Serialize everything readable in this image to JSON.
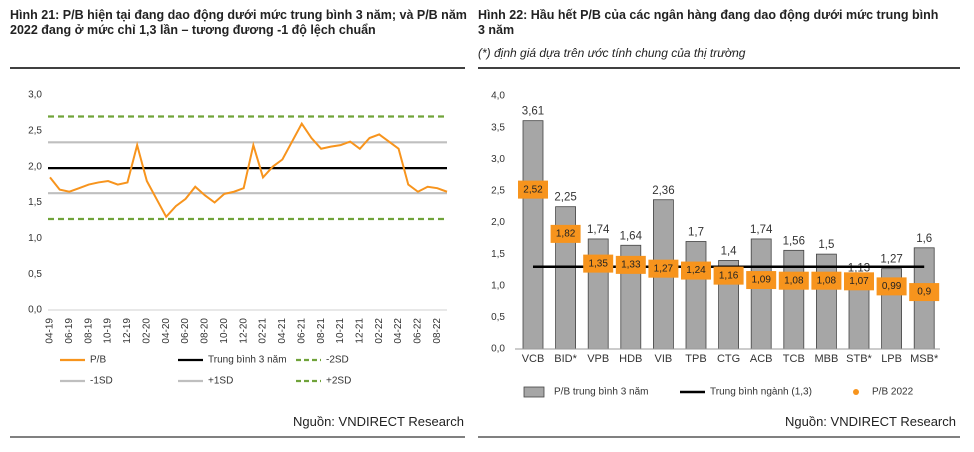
{
  "chart_data": [
    {
      "type": "line",
      "title": "Hình 21: P/B hiện tại đang dao động dưới mức trung bình 3 năm; và P/B năm 2022 đang ở mức chỉ 1,3 lần – tương đương -1 độ lệch chuẩn",
      "source": "Nguồn: VNDIRECT Research",
      "categories": [
        "04-19",
        null,
        "06-19",
        null,
        "08-19",
        null,
        "10-19",
        null,
        "12-19",
        null,
        "02-20",
        null,
        "04-20",
        null,
        "06-20",
        null,
        "08-20",
        null,
        "10-20",
        null,
        "12-20",
        null,
        "02-21",
        null,
        "04-21",
        null,
        "06-21",
        null,
        "08-21",
        null,
        "10-21",
        null,
        "12-21",
        null,
        "02-22",
        null,
        "04-22",
        null,
        "06-22",
        null,
        "08-22",
        null
      ],
      "series": [
        {
          "name": "P/B",
          "color": "#f7941d",
          "values": [
            1.85,
            1.68,
            1.65,
            1.7,
            1.75,
            1.78,
            1.8,
            1.75,
            1.78,
            2.3,
            1.8,
            1.55,
            1.3,
            1.45,
            1.55,
            1.72,
            1.6,
            1.5,
            1.62,
            1.65,
            1.7,
            2.3,
            1.85,
            2.0,
            2.1,
            2.35,
            2.6,
            2.4,
            2.25,
            2.28,
            2.3,
            2.35,
            2.25,
            2.4,
            2.45,
            2.35,
            2.25,
            1.75,
            1.65,
            1.72,
            1.7,
            1.65
          ]
        }
      ],
      "reference_lines": [
        {
          "name": "Trung bình 3 năm",
          "value": 1.98,
          "color": "#000000",
          "dashed": false
        },
        {
          "name": "-2SD",
          "value": 1.27,
          "color": "#70a33a",
          "dashed": true
        },
        {
          "name": "-1SD",
          "value": 1.63,
          "color": "#bfbfbf",
          "dashed": false
        },
        {
          "name": "+1SD",
          "value": 2.34,
          "color": "#bfbfbf",
          "dashed": false
        },
        {
          "name": "+2SD",
          "value": 2.7,
          "color": "#70a33a",
          "dashed": true
        }
      ],
      "ylim": [
        0,
        3
      ],
      "yticks": [
        {
          "value": 0,
          "label": "0,0"
        },
        {
          "value": 0.5,
          "label": "0,5"
        },
        {
          "value": 1,
          "label": "1,0"
        },
        {
          "value": 1.5,
          "label": "1,5"
        },
        {
          "value": 2,
          "label": "2,0"
        },
        {
          "value": 2.5,
          "label": "2,5"
        },
        {
          "value": 3,
          "label": "3,0"
        }
      ]
    },
    {
      "type": "bar",
      "title": "Hình 22: Hầu hết P/B của các ngân hàng đang dao động dưới mức trung bình 3 năm",
      "subtitle": "(*) định giá dựa trên ước tính chung của thị trường",
      "source": "Nguồn: VNDIRECT Research",
      "categories": [
        "VCB",
        "BID*",
        "VPB",
        "HDB",
        "VIB",
        "TPB",
        "CTG",
        "ACB",
        "TCB",
        "MBB",
        "STB*",
        "LPB",
        "MSB*"
      ],
      "series": [
        {
          "name": "P/B trung bình 3 năm",
          "type": "bar",
          "color": "#a6a6a6",
          "values": [
            3.61,
            2.25,
            1.74,
            1.64,
            2.36,
            1.7,
            1.4,
            1.74,
            1.56,
            1.5,
            1.13,
            1.27,
            1.6
          ],
          "value_labels": [
            "3,61",
            "2,25",
            "1,74",
            "1,64",
            "2,36",
            "1,7",
            "1,4",
            "1,74",
            "1,56",
            "1,5",
            "1,13",
            "1,27",
            "1,6"
          ]
        },
        {
          "name": "Trung bình ngành (1,3)",
          "type": "line",
          "color": "#000000",
          "values": [
            1.3,
            1.3,
            1.3,
            1.3,
            1.3,
            1.3,
            1.3,
            1.3,
            1.3,
            1.3,
            1.3,
            1.3,
            1.3
          ]
        },
        {
          "name": "P/B 2022",
          "type": "scatter",
          "color": "#f7941d",
          "values": [
            2.52,
            1.82,
            1.35,
            1.33,
            1.27,
            1.24,
            1.16,
            1.09,
            1.08,
            1.08,
            1.07,
            0.99,
            0.9
          ],
          "value_labels": [
            "2,52",
            "1,82",
            "1,35",
            "1,33",
            "1,27",
            "1,24",
            "1,16",
            "1,09",
            "1,08",
            "1,08",
            "1,07",
            "0,99",
            "0,9"
          ]
        }
      ],
      "ylim": [
        0,
        4
      ],
      "yticks": [
        {
          "value": 0,
          "label": "0,0"
        },
        {
          "value": 0.5,
          "label": "0,5"
        },
        {
          "value": 1,
          "label": "1,0"
        },
        {
          "value": 1.5,
          "label": "1,5"
        },
        {
          "value": 2,
          "label": "2,0"
        },
        {
          "value": 2.5,
          "label": "2,5"
        },
        {
          "value": 3,
          "label": "3,0"
        },
        {
          "value": 3.5,
          "label": "3,5"
        },
        {
          "value": 4,
          "label": "4,0"
        }
      ]
    }
  ]
}
